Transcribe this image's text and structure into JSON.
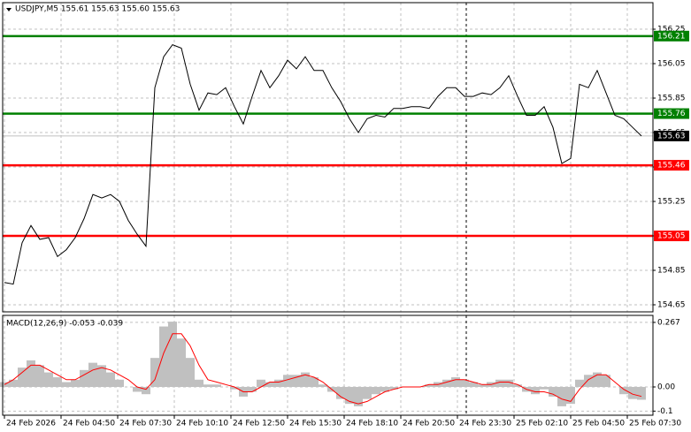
{
  "chart_data": [
    {
      "type": "line",
      "title": "USDJPY,M5  155.61 155.63 155.60 155.63",
      "x": [
        0,
        25,
        50,
        75,
        100,
        125,
        150,
        175,
        200,
        225,
        250,
        275,
        300,
        325,
        350,
        375,
        400,
        425,
        450,
        475,
        500,
        525,
        550,
        575,
        600,
        625,
        650,
        675,
        700,
        725,
        750,
        775,
        800,
        825,
        850,
        875,
        900,
        925,
        950,
        975,
        1000,
        1025,
        1050,
        1075,
        1100,
        1125,
        1150,
        1175,
        1200,
        1225,
        1250,
        1275,
        1300,
        1325,
        1350,
        1375,
        1400,
        1425,
        1450,
        1475,
        1500,
        1525,
        1550,
        1575,
        1600,
        1625,
        1650,
        1675,
        1700,
        1725,
        1750,
        1775,
        1800
      ],
      "series": [
        {
          "color": "#000000",
          "values": [
            154.78,
            154.77,
            155.01,
            155.11,
            155.03,
            155.04,
            154.93,
            154.97,
            155.04,
            155.15,
            155.29,
            155.27,
            155.29,
            155.25,
            155.14,
            155.06,
            154.99,
            155.91,
            156.09,
            156.16,
            156.14,
            155.93,
            155.78,
            155.88,
            155.87,
            155.91,
            155.8,
            155.7,
            155.86,
            156.01,
            155.91,
            155.98,
            156.07,
            156.02,
            156.09,
            156.01,
            156.01,
            155.91,
            155.83,
            155.73,
            155.65,
            155.73,
            155.75,
            155.74,
            155.79,
            155.79,
            155.8,
            155.8,
            155.79,
            155.86,
            155.91,
            155.91,
            155.86,
            155.86,
            155.88,
            155.87,
            155.91,
            155.98,
            155.86,
            155.75,
            155.75,
            155.8,
            155.68,
            155.47,
            155.5,
            155.93,
            155.91,
            156.01,
            155.88,
            155.75,
            155.73,
            155.68,
            155.63
          ]
        }
      ],
      "xlim": [
        -5,
        1832.5
      ],
      "xticks": [
        {
          "value": 0,
          "label": "24 Feb 2026"
        },
        {
          "value": 160,
          "label": "24 Feb 04:50"
        },
        {
          "value": 320,
          "label": "24 Feb 07:30"
        },
        {
          "value": 480,
          "label": "24 Feb 10:10"
        },
        {
          "value": 640,
          "label": "24 Feb 12:50"
        },
        {
          "value": 800,
          "label": "24 Feb 15:30"
        },
        {
          "value": 960,
          "label": "24 Feb 18:10"
        },
        {
          "value": 1120,
          "label": "24 Feb 20:50"
        },
        {
          "value": 1280,
          "label": "24 Feb 23:30"
        },
        {
          "value": 1440,
          "label": "25 Feb 02:10"
        },
        {
          "value": 1600,
          "label": "25 Feb 04:50"
        },
        {
          "value": 1760,
          "label": "25 Feb 07:30"
        }
      ],
      "ylim": [
        154.609,
        156.404
      ],
      "yticks": [
        156.25,
        156.05,
        155.85,
        155.65,
        155.45,
        155.25,
        155.05,
        154.85,
        154.65
      ],
      "grid": true,
      "hlines": [
        {
          "value": 156.21,
          "color": "#008000"
        },
        {
          "value": 155.76,
          "color": "#008000"
        },
        {
          "value": 155.46,
          "color": "#ff0000"
        },
        {
          "value": 155.05,
          "color": "#ff0000"
        }
      ],
      "price_line": {
        "value": 155.63,
        "color": "#c0c0c0"
      },
      "vlines": [
        1305
      ]
    },
    {
      "type": "macd",
      "title": "MACD(12,26,9) -0.053 -0.039",
      "series": [
        {
          "color": "#c0c0c0",
          "values": [
            0.02,
            0.03,
            0.08,
            0.11,
            0.09,
            0.06,
            0.04,
            0.02,
            0.03,
            0.07,
            0.1,
            0.09,
            0.06,
            0.03,
            0.0,
            -0.02,
            -0.03,
            0.12,
            0.25,
            0.27,
            0.2,
            0.12,
            0.03,
            0.01,
            0.01,
            0.0,
            -0.01,
            -0.04,
            -0.02,
            0.03,
            0.02,
            0.03,
            0.05,
            0.05,
            0.06,
            0.04,
            0.01,
            -0.02,
            -0.05,
            -0.07,
            -0.08,
            -0.05,
            -0.03,
            -0.02,
            -0.01,
            0.0,
            0.0,
            0.0,
            0.01,
            0.02,
            0.03,
            0.04,
            0.03,
            0.02,
            0.01,
            0.02,
            0.03,
            0.03,
            0.01,
            -0.02,
            -0.03,
            -0.01,
            -0.04,
            -0.08,
            -0.07,
            0.03,
            0.05,
            0.06,
            0.05,
            0.0,
            -0.03,
            -0.05,
            -0.053
          ]
        },
        {
          "color": "#ff0000",
          "values": [
            0.01,
            0.03,
            0.06,
            0.09,
            0.09,
            0.07,
            0.05,
            0.03,
            0.03,
            0.05,
            0.07,
            0.08,
            0.07,
            0.05,
            0.03,
            0.0,
            -0.01,
            0.03,
            0.14,
            0.22,
            0.22,
            0.17,
            0.09,
            0.03,
            0.02,
            0.01,
            0.0,
            -0.02,
            -0.02,
            0.0,
            0.02,
            0.02,
            0.03,
            0.04,
            0.05,
            0.04,
            0.02,
            -0.01,
            -0.04,
            -0.06,
            -0.07,
            -0.06,
            -0.04,
            -0.02,
            -0.01,
            0.0,
            0.0,
            0.0,
            0.01,
            0.01,
            0.02,
            0.03,
            0.03,
            0.02,
            0.01,
            0.01,
            0.02,
            0.02,
            0.01,
            -0.01,
            -0.02,
            -0.02,
            -0.03,
            -0.05,
            -0.06,
            -0.01,
            0.03,
            0.05,
            0.05,
            0.02,
            -0.01,
            -0.03,
            -0.039
          ]
        }
      ],
      "ylim": [
        -0.117,
        0.296
      ],
      "yticks": [
        0.267,
        {
          "value": 0,
          "label": "0.00"
        },
        -0.1
      ],
      "vlines": [
        1305
      ]
    }
  ]
}
